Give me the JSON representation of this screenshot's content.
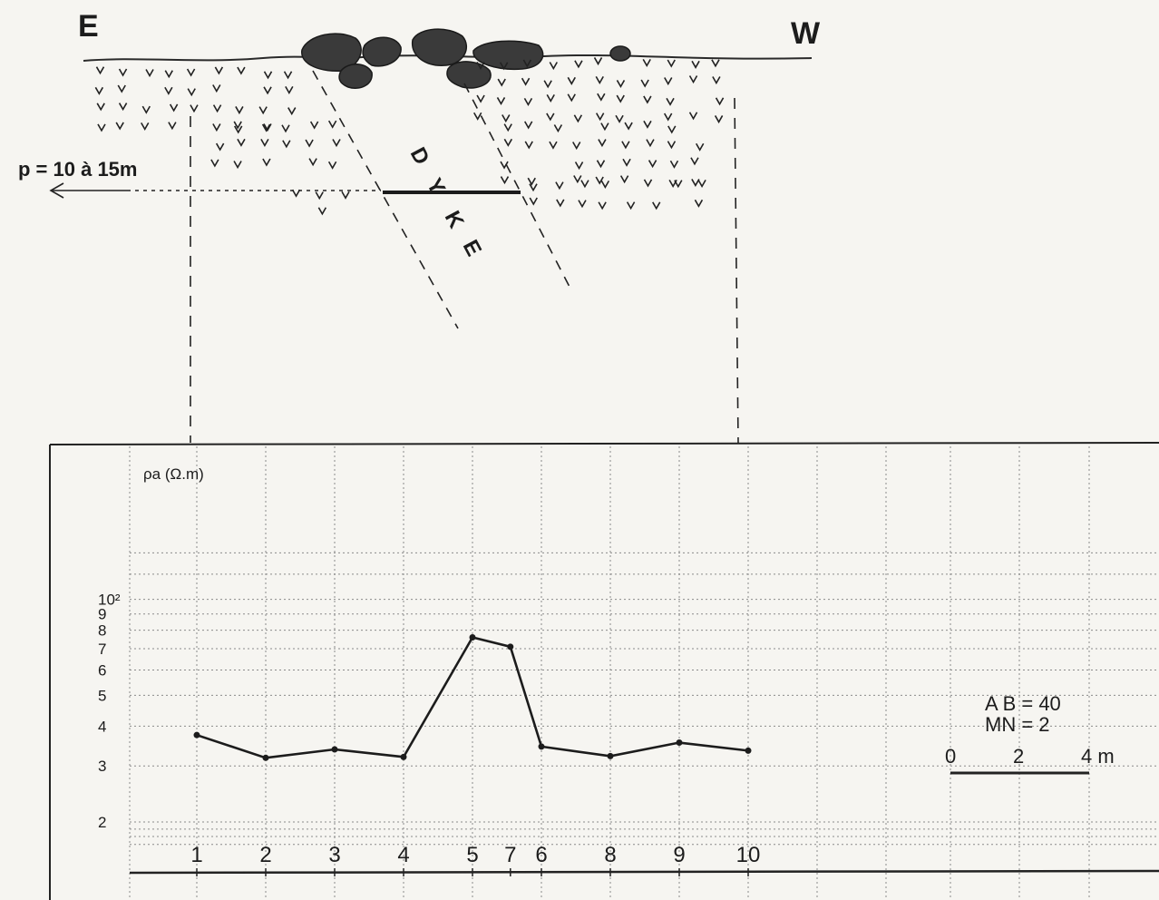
{
  "section": {
    "east_label": "E",
    "west_label": "W",
    "depth_label": "p = 10 à 15m",
    "dyke_letters": [
      "D",
      "Y",
      "K",
      "E"
    ]
  },
  "chart_data": {
    "type": "line",
    "title": "",
    "ylabel": "ρa (Ω.m)",
    "xlabel": "",
    "yscale": "log",
    "ylim": [
      1.65,
      140
    ],
    "y_tick_labels": [
      "2",
      "3",
      "4",
      "5",
      "6",
      "7",
      "8",
      "9",
      "10²"
    ],
    "y_tick_values": [
      2,
      3,
      4,
      5,
      6,
      7,
      8,
      9,
      10
    ],
    "grid": true,
    "series": [
      {
        "points": [
          {
            "label": "1",
            "x": 1,
            "y": 3.75
          },
          {
            "label": "2",
            "x": 2,
            "y": 3.18
          },
          {
            "label": "3",
            "x": 3,
            "y": 3.38
          },
          {
            "label": "4",
            "x": 4,
            "y": 3.2
          },
          {
            "label": "5",
            "x": 5,
            "y": 7.6
          },
          {
            "label": "7",
            "x": 5.55,
            "y": 7.1
          },
          {
            "label": "6",
            "x": 6,
            "y": 3.45
          },
          {
            "label": "8",
            "x": 7,
            "y": 3.22
          },
          {
            "label": "9",
            "x": 8,
            "y": 3.55
          },
          {
            "label": "10",
            "x": 9,
            "y": 3.35
          }
        ]
      }
    ],
    "annotations": {
      "ab_text": "A B = 40",
      "mn_text": "MN = 2",
      "scale_labels": [
        "0",
        "2",
        "4 m"
      ]
    }
  }
}
